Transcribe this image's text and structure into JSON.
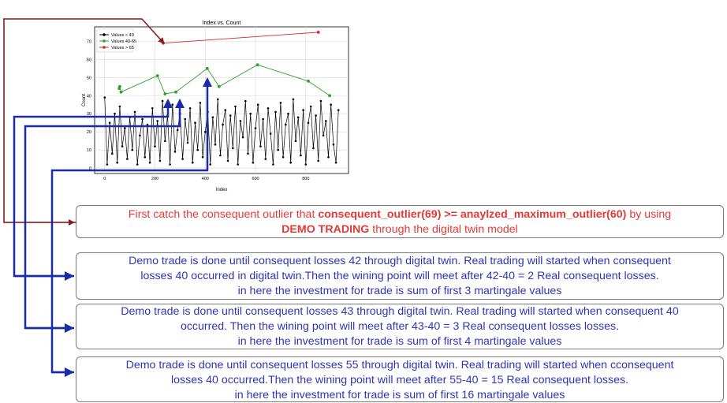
{
  "chart_data": {
    "type": "line",
    "title": "Index vs. Count",
    "xlabel": "Index",
    "ylabel": "Count",
    "xlim": [
      -40,
      970
    ],
    "ylim": [
      -3,
      78
    ],
    "xticks": [
      0,
      200,
      400,
      600,
      800
    ],
    "yticks": [
      0,
      10,
      20,
      30,
      40,
      50,
      60,
      70
    ],
    "grid": true,
    "legend_position": "top-left",
    "series": [
      {
        "name": "Values < 40",
        "color": "#000000",
        "x": [
          0,
          10,
          20,
          30,
          40,
          50,
          60,
          70,
          80,
          90,
          100,
          110,
          120,
          130,
          140,
          150,
          160,
          170,
          180,
          190,
          200,
          210,
          220,
          230,
          240,
          250,
          260,
          270,
          280,
          290,
          300,
          310,
          320,
          330,
          340,
          350,
          360,
          370,
          380,
          390,
          400,
          410,
          420,
          430,
          440,
          450,
          460,
          470,
          480,
          490,
          500,
          510,
          520,
          530,
          540,
          550,
          560,
          570,
          580,
          590,
          600,
          610,
          620,
          630,
          640,
          650,
          660,
          670,
          680,
          690,
          700,
          710,
          720,
          730,
          740,
          750,
          760,
          770,
          780,
          790,
          800,
          810,
          820,
          830,
          840,
          850,
          860,
          870,
          880,
          890,
          900,
          910,
          920,
          930
        ],
        "values": [
          39,
          2,
          25,
          8,
          30,
          3,
          34,
          12,
          22,
          5,
          28,
          10,
          31,
          2,
          18,
          27,
          6,
          24,
          3,
          33,
          12,
          26,
          4,
          37,
          15,
          29,
          2,
          35,
          9,
          21,
          30,
          5,
          27,
          14,
          33,
          3,
          25,
          10,
          36,
          6,
          20,
          31,
          2,
          28,
          13,
          38,
          7,
          24,
          32,
          4,
          29,
          11,
          34,
          2,
          26,
          17,
          37,
          8,
          30,
          3,
          22,
          35,
          12,
          27,
          5,
          33,
          19,
          2,
          31,
          10,
          36,
          6,
          24,
          30,
          3,
          38,
          15,
          28,
          7,
          32,
          2,
          25,
          34,
          11,
          29,
          4,
          37,
          18,
          26,
          6,
          35,
          13,
          3,
          32
        ]
      },
      {
        "name": "Values 40-65",
        "color": "#2ca02c",
        "x": [
          58,
          60,
          65,
          210,
          240,
          283,
          408,
          455,
          608,
          810,
          895
        ],
        "values": [
          44,
          45,
          42,
          51,
          41,
          42,
          55,
          45,
          57,
          48,
          40
        ]
      },
      {
        "name": "Values > 65",
        "color": "#d62728",
        "x": [
          233,
          850
        ],
        "values": [
          69,
          75
        ]
      }
    ]
  },
  "boxes": {
    "box1": {
      "line1_prefix": "First catch the consequent outlier that ",
      "line1_bold": "consequent_outlier(69) >= anaylzed_maximum_outlier(60)",
      "line1_suffix": " by using",
      "line2_bold": "DEMO TRADING",
      "line2_suffix": " through the digital twin model"
    },
    "box2": {
      "line1": "Demo trade is done until consequent losses 42 through digital twin. Real trading will started  when consequent",
      "line2": "losses 40 occurred in digital twin.Then the wining point will meet after 42-40 = 2 Real consequent losses.",
      "line3": "in here the investment for trade is sum of first 3 martingale values"
    },
    "box3": {
      "line1": "Demo trade is done until consequent losses 43 through digital twin. Real trading will started  when consequent 40",
      "line2": "occurred. Then the wining point will meet after 43-40 = 3 Real consequent losses losses.",
      "line3": "in here the investment for trade is sum of first 4 martingale values"
    },
    "box4": {
      "line1": "Demo trade is done until consequent losses 55 through digital twin. Real trading will started  when cconsequent",
      "line2": "losses 40 occurred.Then the wining point will meet after 55-40 = 15 Real consequent losses.",
      "line3": "in here the investment for trade is sum of first 16 martingale values"
    }
  },
  "colors": {
    "red_arrow": "#8b1a1a",
    "blue_arrow": "#1a2aa8",
    "box1_text": "#e53935",
    "box_text": "#2e35b8"
  }
}
